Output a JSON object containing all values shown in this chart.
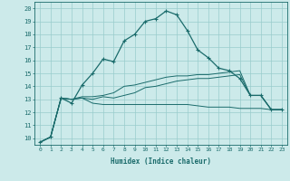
{
  "xlabel": "Humidex (Indice chaleur)",
  "background_color": "#cceaea",
  "grid_color": "#99cccc",
  "line_color": "#1a6b6b",
  "xlim": [
    -0.5,
    23.5
  ],
  "ylim": [
    9.5,
    20.5
  ],
  "xticks": [
    0,
    1,
    2,
    3,
    4,
    5,
    6,
    7,
    8,
    9,
    10,
    11,
    12,
    13,
    14,
    15,
    16,
    17,
    18,
    19,
    20,
    21,
    22,
    23
  ],
  "yticks": [
    10,
    11,
    12,
    13,
    14,
    15,
    16,
    17,
    18,
    19,
    20
  ],
  "line1_x": [
    0,
    1,
    2,
    3,
    4,
    5,
    6,
    7,
    8,
    9,
    10,
    11,
    12,
    13,
    14,
    15,
    16,
    17,
    18,
    19,
    20,
    21,
    22,
    23
  ],
  "line1_y": [
    9.7,
    10.1,
    13.1,
    12.7,
    14.1,
    15.0,
    16.1,
    15.9,
    17.5,
    18.0,
    19.0,
    19.2,
    19.8,
    19.5,
    18.3,
    16.8,
    16.2,
    15.4,
    15.2,
    14.6,
    13.3,
    13.3,
    12.2,
    12.2
  ],
  "line2_x": [
    0,
    1,
    2,
    3,
    4,
    5,
    6,
    7,
    8,
    9,
    10,
    11,
    12,
    13,
    14,
    15,
    16,
    17,
    18,
    19,
    20,
    21,
    22,
    23
  ],
  "line2_y": [
    9.7,
    10.1,
    13.1,
    13.0,
    13.1,
    13.0,
    13.2,
    13.1,
    13.3,
    13.5,
    13.9,
    14.0,
    14.2,
    14.4,
    14.5,
    14.6,
    14.6,
    14.7,
    14.8,
    14.9,
    13.3,
    13.3,
    12.2,
    12.2
  ],
  "line3_x": [
    0,
    1,
    2,
    3,
    4,
    5,
    6,
    7,
    8,
    9,
    10,
    11,
    12,
    13,
    14,
    15,
    16,
    17,
    18,
    19,
    20,
    21,
    22,
    23
  ],
  "line3_y": [
    9.7,
    10.1,
    13.1,
    13.0,
    13.1,
    12.7,
    12.6,
    12.6,
    12.6,
    12.6,
    12.6,
    12.6,
    12.6,
    12.6,
    12.6,
    12.5,
    12.4,
    12.4,
    12.4,
    12.3,
    12.3,
    12.3,
    12.2,
    12.2
  ],
  "line4_x": [
    0,
    1,
    2,
    3,
    4,
    5,
    6,
    7,
    8,
    9,
    10,
    11,
    12,
    13,
    14,
    15,
    16,
    17,
    18,
    19,
    20,
    21,
    22,
    23
  ],
  "line4_y": [
    9.7,
    10.1,
    13.1,
    13.0,
    13.2,
    13.2,
    13.3,
    13.5,
    14.0,
    14.1,
    14.3,
    14.5,
    14.7,
    14.8,
    14.8,
    14.9,
    14.9,
    15.0,
    15.1,
    15.2,
    13.3,
    13.3,
    12.2,
    12.2
  ]
}
